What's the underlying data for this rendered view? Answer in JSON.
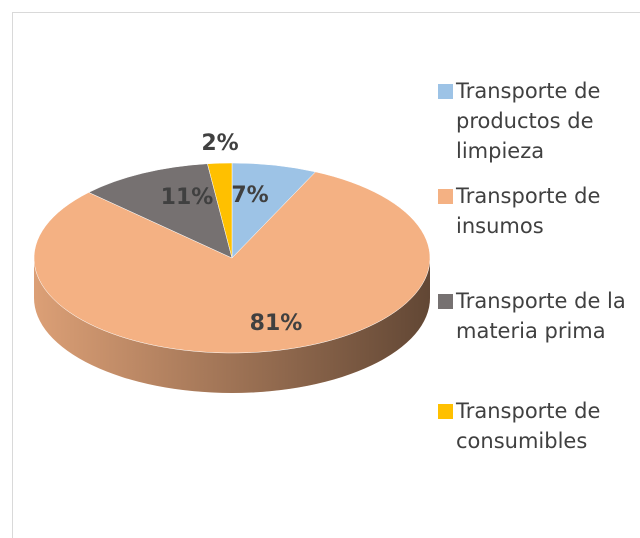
{
  "chart_data": {
    "type": "pie3d",
    "categories": [
      "Transporte de productos de limpieza",
      "Transporte de insumos",
      "Transporte de la materia prima",
      "Transporte de consumibles"
    ],
    "values": [
      7,
      81,
      11,
      2
    ],
    "value_labels": [
      "7%",
      "81%",
      "11%",
      "2%"
    ],
    "colors": [
      "#9dc3e6",
      "#f4b183",
      "#767171",
      "#ffc000"
    ],
    "legend": "right"
  }
}
